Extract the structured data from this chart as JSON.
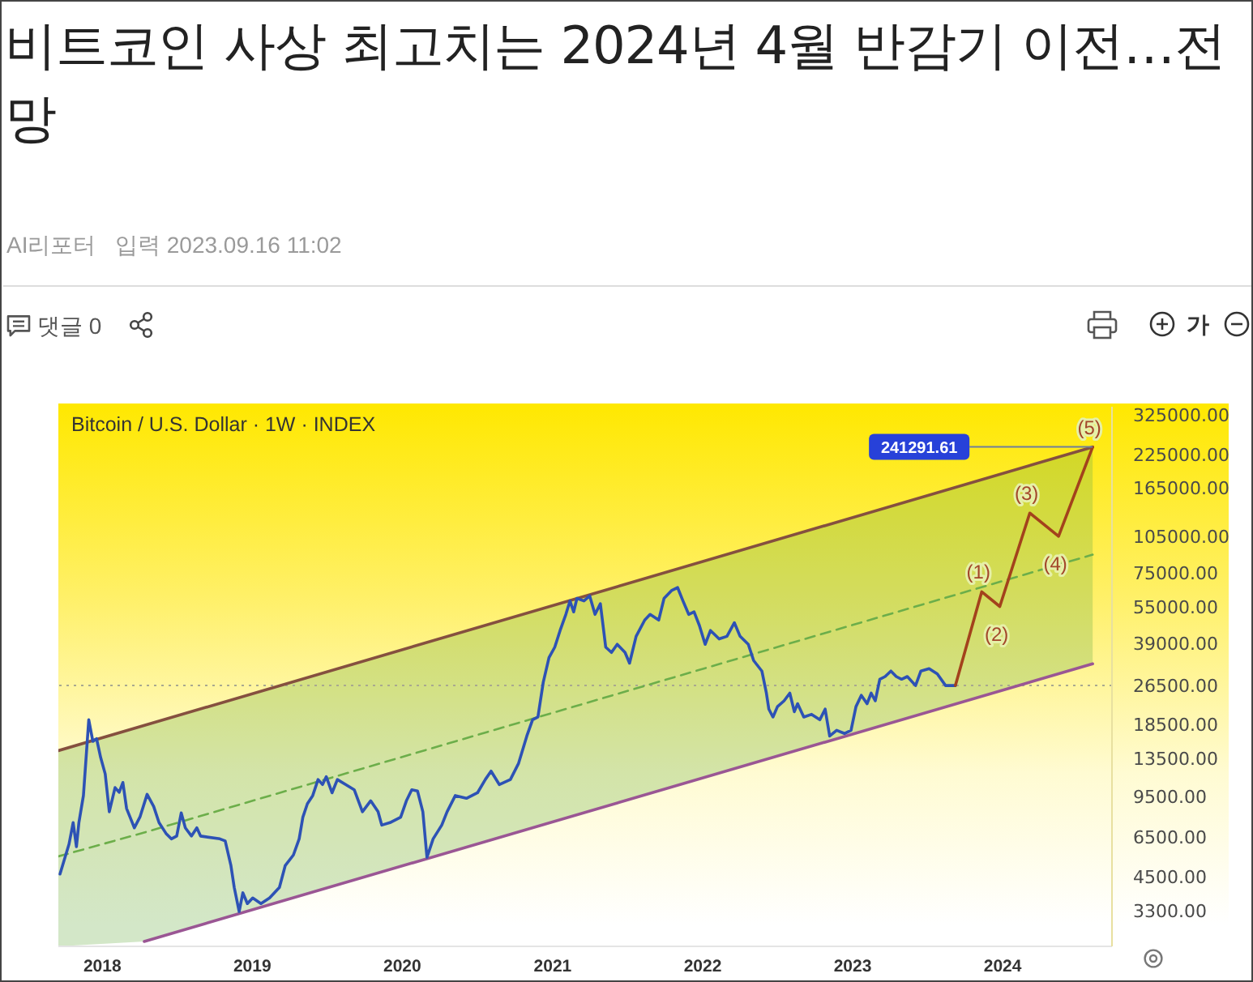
{
  "chart_data": {
    "type": "line",
    "title": "비트코인 사상 최고치는 2024년 4월 반감기 이전…전망",
    "subtitle": "Bitcoin / U.S. Dollar · 1W · INDEX",
    "annotations": [
      "AI리포터",
      "입력 2023.09.16 11:02",
      "댓글 0",
      "가",
      {
        "text": "(1)",
        "x": "2023-11-11",
        "y": 63100
      },
      {
        "text": "(2)",
        "x": "2023-12-25",
        "y": 55100
      },
      {
        "text": "(3)",
        "x": "2024-03-07",
        "y": 130800
      },
      {
        "text": "(4)",
        "x": "2024-05-16",
        "y": 105500
      },
      {
        "text": "(5)",
        "x": "2024-08-07",
        "y": 241291.61
      }
    ],
    "xlim": [
      "2017-09-16",
      "2024-09-23"
    ],
    "xticks": [
      "2018",
      "2019",
      "2020",
      "2021",
      "2022",
      "2023",
      "2024"
    ],
    "ylim": [
      2370,
      350000
    ],
    "log": true,
    "yticks": [
      {
        "value": 3300,
        "label": "3300.00"
      },
      {
        "value": 4500,
        "label": "4500.00"
      },
      {
        "value": 6500,
        "label": "6500.00"
      },
      {
        "value": 9500,
        "label": "9500.00"
      },
      {
        "value": 13500,
        "label": "13500.00"
      },
      {
        "value": 18500,
        "label": "18500.00"
      },
      {
        "value": 26500,
        "label": "26500.00"
      },
      {
        "value": 39000,
        "label": "39000.00"
      },
      {
        "value": 55000,
        "label": "55000.00"
      },
      {
        "value": 75000,
        "label": "75000.00"
      },
      {
        "value": 105000,
        "label": "105000.00"
      },
      {
        "value": 165000,
        "label": "165000.00"
      },
      {
        "value": 225000,
        "label": "225000.00"
      },
      {
        "value": 325000,
        "label": "325000.00"
      }
    ],
    "ref_lines": [
      {
        "axis": "y",
        "value": 26500,
        "color": "#a8a890",
        "line_style": "dotted"
      }
    ],
    "series": [
      {
        "color": "#6cae4a",
        "line_style": "dashed",
        "x": [
          "2017-09-16",
          "2018-04-13",
          "2024-08-07"
        ],
        "values": [
          5450,
          6800,
          89000
        ],
        "lower": [
          2370,
          2480,
          32400
        ],
        "upper": [
          14500,
          18400,
          241000
        ]
      },
      {
        "color": "#85503f",
        "x": [
          "2017-09-16",
          "2024-08-07"
        ],
        "values": [
          14500,
          241000
        ]
      },
      {
        "color": "#9a5694",
        "x": [
          "2018-04-13",
          "2024-08-07"
        ],
        "values": [
          2480,
          32400
        ]
      },
      {
        "color": "#2d52b5",
        "x": [
          "2017-09-20",
          "2017-10-12",
          "2017-10-22",
          "2017-10-30",
          "2017-11-05",
          "2017-11-16",
          "2017-11-29",
          "2017-12-09",
          "2017-12-18",
          "2017-12-28",
          "2018-01-08",
          "2018-01-18",
          "2018-02-01",
          "2018-02-11",
          "2018-02-20",
          "2018-03-01",
          "2018-03-20",
          "2018-04-03",
          "2018-04-20",
          "2018-05-06",
          "2018-05-19",
          "2018-06-05",
          "2018-06-18",
          "2018-07-01",
          "2018-07-12",
          "2018-07-22",
          "2018-08-06",
          "2018-08-19",
          "2018-08-28",
          "2018-10-14",
          "2018-10-27",
          "2018-11-10",
          "2018-11-18",
          "2018-11-30",
          "2018-12-09",
          "2018-12-20",
          "2019-01-02",
          "2019-01-22",
          "2019-02-12",
          "2019-03-08",
          "2019-03-22",
          "2019-04-11",
          "2019-04-25",
          "2019-05-04",
          "2019-05-15",
          "2019-05-28",
          "2019-06-10",
          "2019-06-21",
          "2019-06-30",
          "2019-07-14",
          "2019-07-27",
          "2019-08-16",
          "2019-09-06",
          "2019-09-26",
          "2019-10-16",
          "2019-11-03",
          "2019-11-12",
          "2019-12-02",
          "2019-12-28",
          "2020-01-11",
          "2020-01-24",
          "2020-02-07",
          "2020-02-20",
          "2020-03-01",
          "2020-03-16",
          "2020-04-06",
          "2020-04-19",
          "2020-05-09",
          "2020-06-05",
          "2020-07-02",
          "2020-07-21",
          "2020-08-04",
          "2020-08-24",
          "2020-09-20",
          "2020-10-10",
          "2020-10-30",
          "2020-11-13",
          "2020-11-26",
          "2020-12-09",
          "2020-12-23",
          "2021-01-06",
          "2021-01-19",
          "2021-02-02",
          "2021-02-12",
          "2021-02-21",
          "2021-03-01",
          "2021-03-18",
          "2021-04-01",
          "2021-04-14",
          "2021-04-27",
          "2021-05-10",
          "2021-05-24",
          "2021-06-07",
          "2021-06-26",
          "2021-07-07",
          "2021-07-23",
          "2021-08-13",
          "2021-08-26",
          "2021-09-16",
          "2021-09-29",
          "2021-10-18",
          "2021-11-01",
          "2021-11-14",
          "2021-11-28",
          "2021-12-11",
          "2021-12-24",
          "2022-01-07",
          "2022-01-20",
          "2022-02-10",
          "2022-03-01",
          "2022-03-19",
          "2022-04-02",
          "2022-04-22",
          "2022-05-05",
          "2022-05-25",
          "2022-06-05",
          "2022-06-11",
          "2022-06-21",
          "2022-07-02",
          "2022-07-18",
          "2022-08-01",
          "2022-08-12",
          "2022-08-20",
          "2022-09-04",
          "2022-09-23",
          "2022-10-13",
          "2022-10-26",
          "2022-11-06",
          "2022-11-23",
          "2022-12-12",
          "2022-12-28",
          "2023-01-09",
          "2023-01-22",
          "2023-02-05",
          "2023-02-15",
          "2023-02-25",
          "2023-03-08",
          "2023-03-21",
          "2023-04-04",
          "2023-04-17",
          "2023-04-30",
          "2023-05-14",
          "2023-06-03",
          "2023-06-16",
          "2023-07-06",
          "2023-07-26",
          "2023-08-15",
          "2023-09-08"
        ],
        "values": [
          4630,
          6110,
          7450,
          5960,
          7450,
          9570,
          19300,
          15800,
          16200,
          13600,
          11700,
          8240,
          10300,
          9860,
          10800,
          8490,
          7100,
          7880,
          9680,
          8650,
          7450,
          6740,
          6410,
          6580,
          8150,
          7100,
          6580,
          7100,
          6580,
          6410,
          6290,
          5000,
          4090,
          3270,
          3890,
          3520,
          3710,
          3520,
          3710,
          4090,
          5000,
          5520,
          6410,
          7830,
          8870,
          9570,
          11100,
          10600,
          11400,
          9820,
          11100,
          10600,
          10100,
          8240,
          9120,
          8240,
          7280,
          7450,
          7830,
          9120,
          10100,
          9980,
          8240,
          5400,
          6410,
          7280,
          8240,
          9570,
          9330,
          9820,
          11100,
          12000,
          10600,
          11100,
          12900,
          16600,
          19300,
          19800,
          27300,
          34300,
          37800,
          44100,
          51200,
          58000,
          52400,
          59400,
          58000,
          60800,
          51200,
          56500,
          37800,
          36000,
          38800,
          36000,
          32600,
          41800,
          48600,
          51200,
          48600,
          59400,
          64000,
          65600,
          58000,
          51200,
          52400,
          46200,
          38800,
          44100,
          40800,
          41800,
          47400,
          41800,
          38800,
          33400,
          30300,
          24700,
          21300,
          19800,
          21800,
          23000,
          24700,
          20800,
          22400,
          19800,
          20300,
          19300,
          21300,
          16600,
          17500,
          17000,
          17500,
          21800,
          24200,
          22400,
          24700,
          23000,
          28100,
          28800,
          30300,
          28800,
          28100,
          28800,
          26500,
          30300,
          31000,
          29500,
          26500,
          26500
        ]
      },
      {
        "color": "#a3421c",
        "x": [
          "2023-09-08",
          "2023-11-11",
          "2023-12-25",
          "2024-03-07",
          "2024-05-16",
          "2024-08-07"
        ],
        "values": [
          26500,
          63100,
          55100,
          130800,
          105500,
          241291.61
        ],
        "value_labels": [
          null,
          null,
          null,
          null,
          null,
          "241291.61"
        ]
      }
    ]
  }
}
